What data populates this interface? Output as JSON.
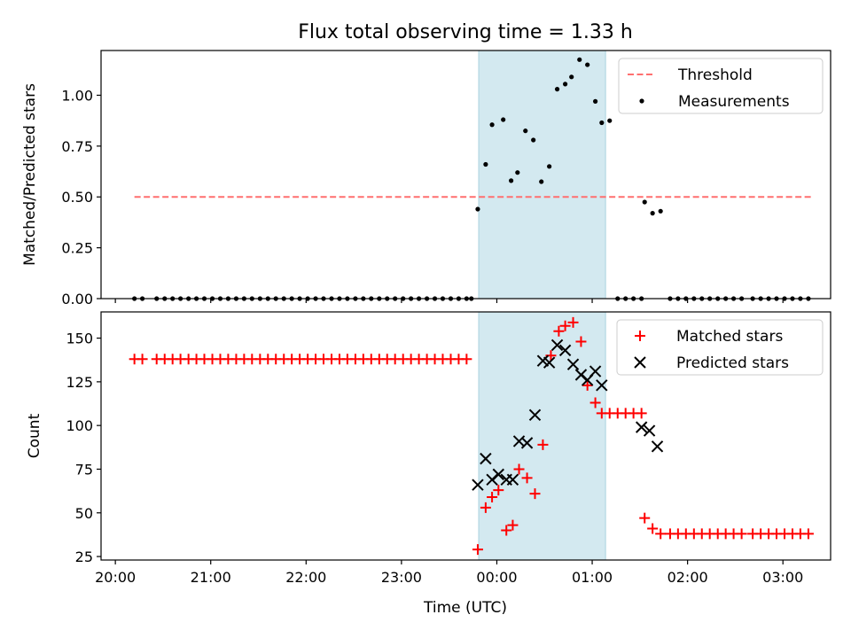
{
  "figure": {
    "title": "Flux total observing time = 1.33 h",
    "xlabel": "Time (UTC)"
  },
  "colors": {
    "threshold": "#ff6f6f",
    "measurements": "#000000",
    "matched": "#ff0000",
    "predicted": "#000000",
    "shade": "#d3e9f0"
  },
  "chart_data": [
    {
      "type": "scatter",
      "panel": "top",
      "title": "Flux total observing time = 1.33 h",
      "xlabel": "",
      "ylabel": "Matched/Predicted stars",
      "x_unit": "hours since 20:00 UTC",
      "xlim": [
        -0.15,
        7.5
      ],
      "ylim": [
        0,
        1.22
      ],
      "x_ticks": [
        0,
        1,
        2,
        3,
        4,
        5,
        6,
        7
      ],
      "x_tick_labels": [
        "20:00",
        "21:00",
        "22:00",
        "23:00",
        "00:00",
        "01:00",
        "02:00",
        "03:00"
      ],
      "y_ticks": [
        0,
        0.25,
        0.5,
        0.75,
        1.0
      ],
      "y_tick_labels": [
        "0.00",
        "0.25",
        "0.50",
        "0.75",
        "1.00"
      ],
      "shaded_region": [
        3.81,
        5.14
      ],
      "legend_position": "top-right",
      "series": [
        {
          "name": "Threshold",
          "style": "dashed-line",
          "x": [
            0.2,
            7.3
          ],
          "y": [
            0.5,
            0.5
          ]
        },
        {
          "name": "Measurements",
          "style": "dot",
          "x": [
            0.2,
            0.283,
            0.433,
            0.517,
            0.6,
            0.683,
            0.767,
            0.85,
            0.933,
            1.017,
            1.1,
            1.183,
            1.267,
            1.35,
            1.433,
            1.517,
            1.6,
            1.683,
            1.767,
            1.85,
            1.933,
            2.017,
            2.1,
            2.183,
            2.267,
            2.35,
            2.433,
            2.517,
            2.6,
            2.683,
            2.767,
            2.85,
            2.933,
            3.017,
            3.1,
            3.183,
            3.267,
            3.35,
            3.433,
            3.517,
            3.6,
            3.683,
            3.733,
            3.8,
            3.883,
            3.95,
            4.067,
            4.15,
            4.217,
            4.3,
            4.383,
            4.467,
            4.55,
            4.633,
            4.717,
            4.783,
            4.867,
            4.95,
            5.033,
            5.1,
            5.183,
            5.267,
            5.35,
            5.433,
            5.517,
            5.55,
            5.633,
            5.717,
            5.817,
            5.9,
            5.983,
            6.067,
            6.15,
            6.233,
            6.317,
            6.4,
            6.483,
            6.567,
            6.683,
            6.767,
            6.85,
            6.933,
            7.017,
            7.1,
            7.183,
            7.267
          ],
          "y": [
            0,
            0,
            0,
            0,
            0,
            0,
            0,
            0,
            0,
            0,
            0,
            0,
            0,
            0,
            0,
            0,
            0,
            0,
            0,
            0,
            0,
            0,
            0,
            0,
            0,
            0,
            0,
            0,
            0,
            0,
            0,
            0,
            0,
            0,
            0,
            0,
            0,
            0,
            0,
            0,
            0,
            0,
            0,
            0.44,
            0.66,
            0.855,
            0.88,
            0.58,
            0.62,
            0.825,
            0.78,
            0.575,
            0.65,
            1.03,
            1.055,
            1.09,
            1.175,
            1.15,
            0.97,
            0.865,
            0.875,
            0,
            0,
            0,
            0,
            0.475,
            0.42,
            0.43,
            0,
            0,
            0,
            0,
            0,
            0,
            0,
            0,
            0,
            0,
            0,
            0,
            0,
            0,
            0,
            0,
            0,
            0
          ]
        }
      ]
    },
    {
      "type": "scatter",
      "panel": "bottom",
      "title": "",
      "xlabel": "Time (UTC)",
      "ylabel": "Count",
      "x_unit": "hours since 20:00 UTC",
      "xlim": [
        -0.15,
        7.5
      ],
      "ylim": [
        23,
        165
      ],
      "x_ticks": [
        0,
        1,
        2,
        3,
        4,
        5,
        6,
        7
      ],
      "x_tick_labels": [
        "20:00",
        "21:00",
        "22:00",
        "23:00",
        "00:00",
        "01:00",
        "02:00",
        "03:00"
      ],
      "y_ticks": [
        25,
        50,
        75,
        100,
        125,
        150
      ],
      "y_tick_labels": [
        "25",
        "50",
        "75",
        "100",
        "125",
        "150"
      ],
      "shaded_region": [
        3.81,
        5.14
      ],
      "legend_position": "top-right",
      "series": [
        {
          "name": "Matched stars",
          "style": "plus",
          "x": [
            0.2,
            0.283,
            0.433,
            0.517,
            0.6,
            0.683,
            0.767,
            0.85,
            0.933,
            1.017,
            1.1,
            1.183,
            1.267,
            1.35,
            1.433,
            1.517,
            1.6,
            1.683,
            1.767,
            1.85,
            1.933,
            2.017,
            2.1,
            2.183,
            2.267,
            2.35,
            2.433,
            2.517,
            2.6,
            2.683,
            2.767,
            2.85,
            2.933,
            3.017,
            3.1,
            3.183,
            3.267,
            3.35,
            3.433,
            3.517,
            3.6,
            3.683,
            3.8,
            3.883,
            3.95,
            4.017,
            4.1,
            4.167,
            4.233,
            4.317,
            4.4,
            4.483,
            4.567,
            4.65,
            4.717,
            4.8,
            4.883,
            4.95,
            5.033,
            5.1,
            5.183,
            5.267,
            5.35,
            5.433,
            5.517,
            5.55,
            5.633,
            5.717,
            5.817,
            5.9,
            5.983,
            6.067,
            6.15,
            6.233,
            6.317,
            6.4,
            6.483,
            6.567,
            6.683,
            6.767,
            6.85,
            6.933,
            7.017,
            7.1,
            7.183,
            7.267
          ],
          "y": [
            138,
            138,
            138,
            138,
            138,
            138,
            138,
            138,
            138,
            138,
            138,
            138,
            138,
            138,
            138,
            138,
            138,
            138,
            138,
            138,
            138,
            138,
            138,
            138,
            138,
            138,
            138,
            138,
            138,
            138,
            138,
            138,
            138,
            138,
            138,
            138,
            138,
            138,
            138,
            138,
            138,
            138,
            29,
            53,
            59,
            63,
            40,
            43,
            75,
            70,
            61,
            89,
            140,
            154,
            157,
            159,
            148,
            123,
            113,
            107,
            107,
            107,
            107,
            107,
            107,
            47,
            41,
            38,
            38,
            38,
            38,
            38,
            38,
            38,
            38,
            38,
            38,
            38,
            38,
            38,
            38,
            38,
            38,
            38,
            38,
            38
          ]
        },
        {
          "name": "Predicted stars",
          "style": "cross",
          "x": [
            3.8,
            3.883,
            3.95,
            4.017,
            4.1,
            4.167,
            4.233,
            4.317,
            4.4,
            4.483,
            4.55,
            4.633,
            4.717,
            4.8,
            4.883,
            4.95,
            5.033,
            5.1,
            5.517,
            5.6,
            5.683
          ],
          "y": [
            66,
            81,
            69,
            72,
            69,
            69,
            91,
            90,
            106,
            137,
            136,
            146,
            143,
            135,
            129,
            126,
            131,
            123,
            99,
            97,
            88
          ]
        }
      ]
    }
  ]
}
